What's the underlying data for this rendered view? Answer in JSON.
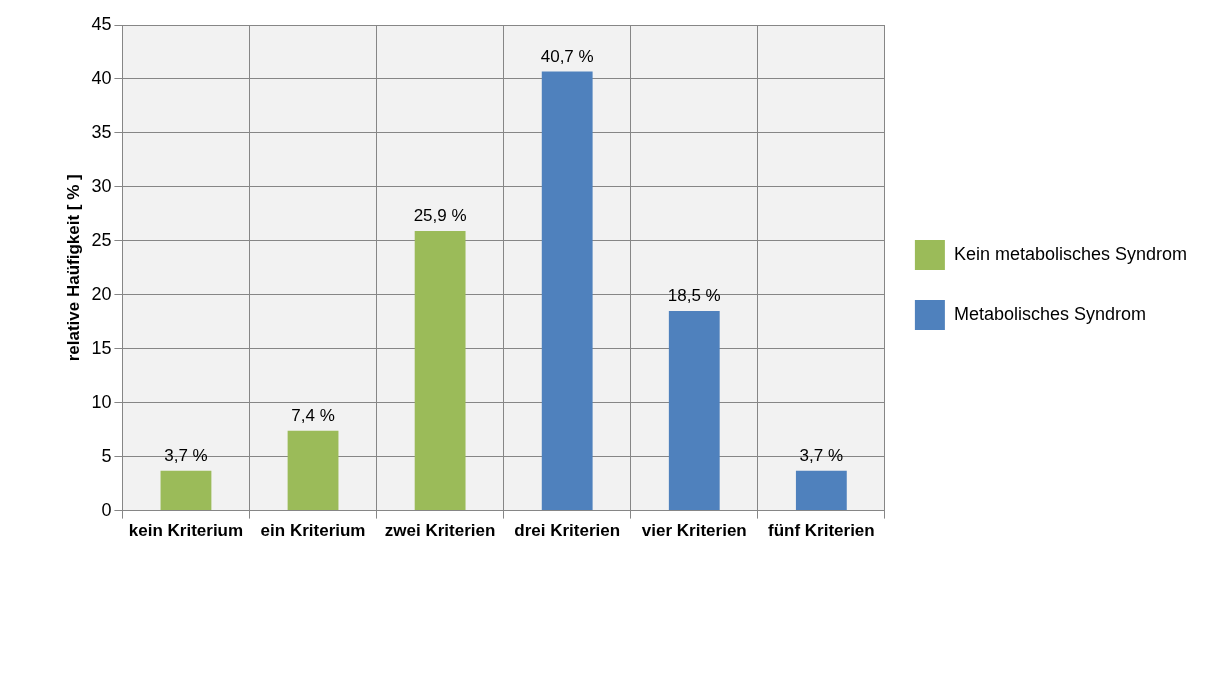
{
  "chart_data": {
    "type": "bar",
    "ylabel": "relative Haüfigkeit [ % ]",
    "categories": [
      "kein Kriterium",
      "ein Kriterium",
      "zwei Kriterien",
      "drei Kriterien",
      "vier Kriterien",
      "fünf Kriterien"
    ],
    "series": [
      {
        "name": "Kein metabolisches Syndrom",
        "color": "#9bbb59",
        "values": [
          3.7,
          7.4,
          25.9,
          null,
          null,
          null
        ],
        "value_labels": [
          "3,7 %",
          "7,4 %",
          "25,9 %",
          null,
          null,
          null
        ]
      },
      {
        "name": "Metabolisches Syndrom",
        "color": "#4f81bd",
        "values": [
          null,
          null,
          null,
          40.7,
          18.5,
          3.7
        ],
        "value_labels": [
          null,
          null,
          null,
          "40,7 %",
          "18,5 %",
          "3,7 %"
        ]
      }
    ],
    "ylim": [
      0,
      45
    ],
    "yticks": [
      0,
      5,
      10,
      15,
      20,
      25,
      30,
      35,
      40,
      45
    ],
    "grid": true,
    "legend": "right"
  }
}
